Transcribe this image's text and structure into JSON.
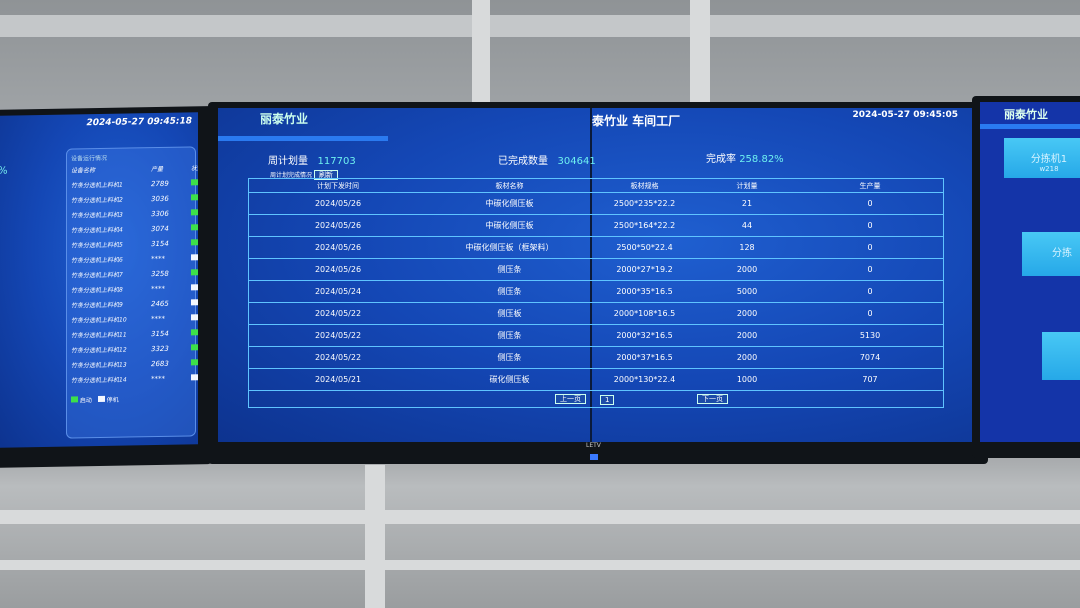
{
  "main": {
    "logo": "丽泰竹业",
    "title": "泰竹业  车间工厂",
    "datetime": "2024-05-27 09:45:05",
    "weekly_plan_label": "周计划量",
    "weekly_plan": "117703",
    "done_label": "已完成数量",
    "done": "304641",
    "rate_label": "完成率",
    "rate": "258.82%",
    "section": "周计划完成情况",
    "refresh": "刷新",
    "headers": [
      "计划下发时间",
      "板材名称",
      "板材规格",
      "计划量",
      "生产量"
    ],
    "rows": [
      [
        "2024/05/26",
        "中碳化侧压板",
        "2500*235*22.2",
        "21",
        "0"
      ],
      [
        "2024/05/26",
        "中碳化侧压板",
        "2500*164*22.2",
        "44",
        "0"
      ],
      [
        "2024/05/26",
        "中碳化侧压板（框架料）",
        "2500*50*22.4",
        "128",
        "0"
      ],
      [
        "2024/05/26",
        "侧压条",
        "2000*27*19.2",
        "2000",
        "0"
      ],
      [
        "2024/05/24",
        "侧压条",
        "2000*35*16.5",
        "5000",
        "0"
      ],
      [
        "2024/05/22",
        "侧压板",
        "2000*108*16.5",
        "2000",
        "0"
      ],
      [
        "2024/05/22",
        "侧压条",
        "2000*32*16.5",
        "2000",
        "5130"
      ],
      [
        "2024/05/22",
        "侧压条",
        "2000*37*16.5",
        "2000",
        "7074"
      ],
      [
        "2024/05/21",
        "碳化侧压板",
        "2000*130*22.4",
        "1000",
        "707"
      ]
    ],
    "prev": "上一页",
    "page": "1",
    "next": "下一页",
    "brand": "LETV"
  },
  "left": {
    "datetime": "2024-05-27 09:45:18",
    "percent": "%",
    "panel_title": "设备运行情况",
    "headers": [
      "设备名称",
      "产量",
      "状态"
    ],
    "rows": [
      [
        "竹条分选机上料机1",
        "2789",
        "run"
      ],
      [
        "竹条分选机上料机2",
        "3036",
        "run"
      ],
      [
        "竹条分选机上料机3",
        "3306",
        "run"
      ],
      [
        "竹条分选机上料机4",
        "3074",
        "run"
      ],
      [
        "竹条分选机上料机5",
        "3154",
        "run"
      ],
      [
        "竹条分选机上料机6",
        "****",
        "stop"
      ],
      [
        "竹条分选机上料机7",
        "3258",
        "run"
      ],
      [
        "竹条分选机上料机8",
        "****",
        "stop"
      ],
      [
        "竹条分选机上料机9",
        "2465",
        "stop"
      ],
      [
        "竹条分选机上料机10",
        "****",
        "stop"
      ],
      [
        "竹条分选机上料机11",
        "3154",
        "run"
      ],
      [
        "竹条分选机上料机12",
        "3323",
        "run"
      ],
      [
        "竹条分选机上料机13",
        "2683",
        "run"
      ],
      [
        "竹条分选机上料机14",
        "****",
        "stop"
      ]
    ],
    "legend_run": "启动",
    "legend_stop": "停机"
  },
  "right": {
    "logo": "丽泰竹业",
    "cards": [
      {
        "name": "分拣机1",
        "value": "w218"
      },
      {
        "name": "分拣",
        "value": ""
      }
    ]
  },
  "colors": {
    "run": "#3de04a",
    "stop": "#f2f6ff",
    "accent": "#5fc4ff"
  }
}
